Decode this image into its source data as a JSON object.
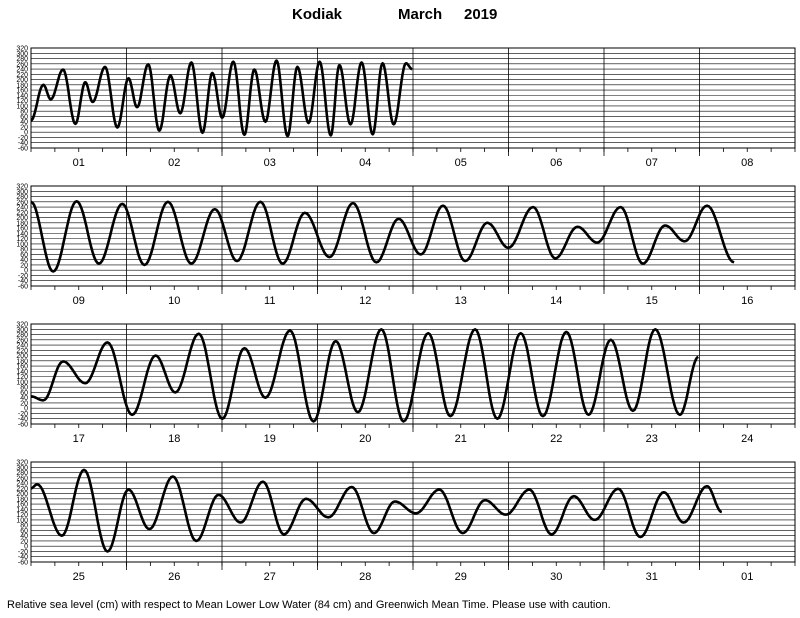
{
  "header": {
    "station": "Kodiak",
    "month": "March",
    "year": "2019"
  },
  "caption": "Relative sea level (cm) with respect to Mean Lower Low Water (84 cm) and Greenwich Mean Time. Please use with caution.",
  "colors": {
    "line": "#000000",
    "grid": "#000000",
    "background": "#ffffff"
  },
  "chart_data": {
    "type": "line",
    "title": "",
    "xlabel": "",
    "ylabel": "",
    "ylim": [
      -60,
      320
    ],
    "y_ticks": [
      320,
      300,
      280,
      260,
      240,
      220,
      200,
      180,
      160,
      140,
      120,
      100,
      80,
      60,
      40,
      20,
      0,
      -20,
      -40,
      -60
    ],
    "grid": true,
    "panels": [
      {
        "days": [
          "01",
          "02",
          "03",
          "04",
          "05",
          "06",
          "07",
          "08"
        ],
        "extrema": [
          [
            0,
            45
          ],
          [
            0.5,
            180
          ],
          [
            0.8,
            125
          ],
          [
            1.3,
            238
          ],
          [
            1.8,
            32
          ],
          [
            2.2,
            190
          ],
          [
            2.5,
            115
          ],
          [
            3.0,
            248
          ],
          [
            3.5,
            18
          ],
          [
            3.95,
            205
          ],
          [
            4.3,
            95
          ],
          [
            4.75,
            258
          ],
          [
            5.2,
            6
          ],
          [
            5.65,
            215
          ],
          [
            6.05,
            72
          ],
          [
            6.5,
            265
          ],
          [
            6.95,
            -2
          ],
          [
            7.35,
            225
          ],
          [
            7.75,
            55
          ],
          [
            8.2,
            268
          ],
          [
            8.65,
            -10
          ],
          [
            9.05,
            238
          ],
          [
            9.5,
            40
          ],
          [
            9.95,
            272
          ],
          [
            10.4,
            -15
          ],
          [
            10.8,
            248
          ],
          [
            11.25,
            35
          ],
          [
            11.7,
            268
          ],
          [
            12.15,
            -12
          ],
          [
            12.5,
            255
          ],
          [
            12.95,
            30
          ],
          [
            13.4,
            265
          ],
          [
            13.85,
            -8
          ],
          [
            14.25,
            262
          ],
          [
            14.7,
            30
          ],
          [
            15.2,
            262
          ],
          [
            15.45,
            240
          ]
        ]
      },
      {
        "days": [
          "09",
          "10",
          "11",
          "12",
          "13",
          "14",
          "15",
          "16"
        ],
        "extrema": [
          [
            0,
            260
          ],
          [
            0.9,
            -5
          ],
          [
            1.85,
            262
          ],
          [
            2.75,
            25
          ],
          [
            3.7,
            252
          ],
          [
            4.6,
            20
          ],
          [
            5.55,
            260
          ],
          [
            6.5,
            25
          ],
          [
            7.45,
            232
          ],
          [
            8.35,
            35
          ],
          [
            9.3,
            260
          ],
          [
            10.2,
            25
          ],
          [
            11.1,
            218
          ],
          [
            12.1,
            50
          ],
          [
            13.05,
            255
          ],
          [
            14,
            30
          ],
          [
            14.9,
            195
          ],
          [
            15.8,
            60
          ],
          [
            16.7,
            245
          ],
          [
            17.6,
            35
          ],
          [
            18.5,
            180
          ],
          [
            19.35,
            85
          ],
          [
            20.35,
            240
          ],
          [
            21.25,
            45
          ],
          [
            22.15,
            165
          ],
          [
            22.95,
            105
          ],
          [
            23.9,
            240
          ],
          [
            24.8,
            25
          ],
          [
            25.7,
            170
          ],
          [
            26.5,
            110
          ],
          [
            27.4,
            245
          ],
          [
            28.5,
            30
          ]
        ]
      },
      {
        "days": [
          "17",
          "18",
          "19",
          "20",
          "21",
          "22",
          "23",
          "24"
        ],
        "extrema": [
          [
            0,
            45
          ],
          [
            0.5,
            30
          ],
          [
            1.3,
            178
          ],
          [
            2.2,
            95
          ],
          [
            3.1,
            250
          ],
          [
            4.1,
            -25
          ],
          [
            5.05,
            200
          ],
          [
            5.85,
            60
          ],
          [
            6.8,
            283
          ],
          [
            7.75,
            -40
          ],
          [
            8.65,
            228
          ],
          [
            9.5,
            40
          ],
          [
            10.5,
            295
          ],
          [
            11.45,
            -50
          ],
          [
            12.35,
            255
          ],
          [
            13.25,
            -15
          ],
          [
            14.2,
            300
          ],
          [
            15.1,
            -50
          ],
          [
            16.1,
            285
          ],
          [
            17,
            -30
          ],
          [
            18,
            300
          ],
          [
            18.9,
            -40
          ],
          [
            19.85,
            285
          ],
          [
            20.75,
            -30
          ],
          [
            21.7,
            290
          ],
          [
            22.6,
            -25
          ],
          [
            23.5,
            260
          ],
          [
            24.4,
            -10
          ],
          [
            25.3,
            300
          ],
          [
            26.3,
            -25
          ],
          [
            27.05,
            195
          ]
        ]
      },
      {
        "days": [
          "25",
          "26",
          "27",
          "28",
          "29",
          "30",
          "31",
          "01"
        ],
        "extrema": [
          [
            0,
            220
          ],
          [
            0.25,
            235
          ],
          [
            1.25,
            40
          ],
          [
            2.15,
            290
          ],
          [
            3.1,
            -20
          ],
          [
            3.95,
            215
          ],
          [
            4.8,
            65
          ],
          [
            5.75,
            265
          ],
          [
            6.7,
            20
          ],
          [
            7.6,
            195
          ],
          [
            8.5,
            90
          ],
          [
            9.4,
            245
          ],
          [
            10.25,
            45
          ],
          [
            11.15,
            180
          ],
          [
            12.05,
            110
          ],
          [
            13.0,
            225
          ],
          [
            13.9,
            50
          ],
          [
            14.75,
            170
          ],
          [
            15.6,
            125
          ],
          [
            16.55,
            215
          ],
          [
            17.5,
            50
          ],
          [
            18.4,
            175
          ],
          [
            19.25,
            120
          ],
          [
            20.2,
            215
          ],
          [
            21.1,
            45
          ],
          [
            22.0,
            190
          ],
          [
            22.85,
            100
          ],
          [
            23.8,
            218
          ],
          [
            24.7,
            35
          ],
          [
            25.65,
            205
          ],
          [
            26.45,
            90
          ],
          [
            27.4,
            228
          ],
          [
            28,
            130
          ]
        ]
      }
    ]
  }
}
